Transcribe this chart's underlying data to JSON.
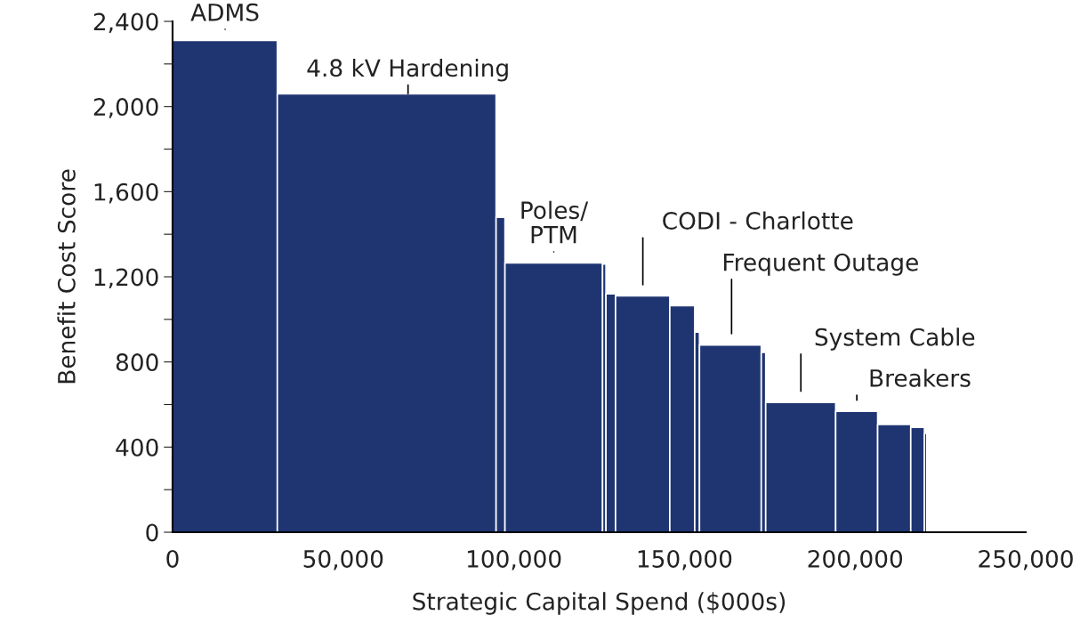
{
  "chart_data": {
    "type": "histogram",
    "xlabel": "Strategic Capital Spend ($000s)",
    "ylabel": "Benefit Cost Score",
    "bins": [
      0,
      30700,
      94800,
      97400,
      126000,
      127000,
      129800,
      145700,
      153000,
      154400,
      172500,
      173800,
      194300,
      206600,
      216300,
      220300,
      221000
    ],
    "values": [
      2310,
      2060,
      1480,
      1265,
      1260,
      1120,
      1110,
      1065,
      940,
      880,
      845,
      610,
      568,
      506,
      493,
      464
    ],
    "color": "#1f3572",
    "xlim": [
      0,
      250000
    ],
    "xticks": [
      {
        "value": 0,
        "label": "0"
      },
      {
        "value": 50000,
        "label": "50,000"
      },
      {
        "value": 100000,
        "label": "100,000"
      },
      {
        "value": 150000,
        "label": "150,000"
      },
      {
        "value": 200000,
        "label": "200,000"
      },
      {
        "value": 250000,
        "label": "250,000"
      }
    ],
    "ylim": [
      0,
      2400
    ],
    "yticks": [
      {
        "value": 0,
        "label": "0"
      },
      {
        "value": 200,
        "label": null
      },
      {
        "value": 400,
        "label": "400"
      },
      {
        "value": 600,
        "label": null
      },
      {
        "value": 800,
        "label": "800"
      },
      {
        "value": 1000,
        "label": null
      },
      {
        "value": 1200,
        "label": "1,200"
      },
      {
        "value": 1400,
        "label": null
      },
      {
        "value": 1600,
        "label": "1,600"
      },
      {
        "value": 1800,
        "label": null
      },
      {
        "value": 2000,
        "label": "2,000"
      },
      {
        "value": 2200,
        "label": null
      },
      {
        "value": 2400,
        "label": "2,400"
      }
    ],
    "grid": false,
    "annotations": [
      {
        "text": "ADMS",
        "x": 15400,
        "y": 2310
      },
      {
        "text": "4.8 kV Hardening",
        "x": 69000,
        "y": 2060
      },
      {
        "text": "Poles/\nPTM",
        "x": 111700,
        "y": 1265
      },
      {
        "text": "CODI - Charlotte",
        "x": 137800,
        "y": 1110
      },
      {
        "text": "Frequent Outage",
        "x": 163800,
        "y": 880
      },
      {
        "text": "System Cable",
        "x": 184100,
        "y": 610
      },
      {
        "text": "Breakers",
        "x": 200500,
        "y": 568
      }
    ]
  }
}
